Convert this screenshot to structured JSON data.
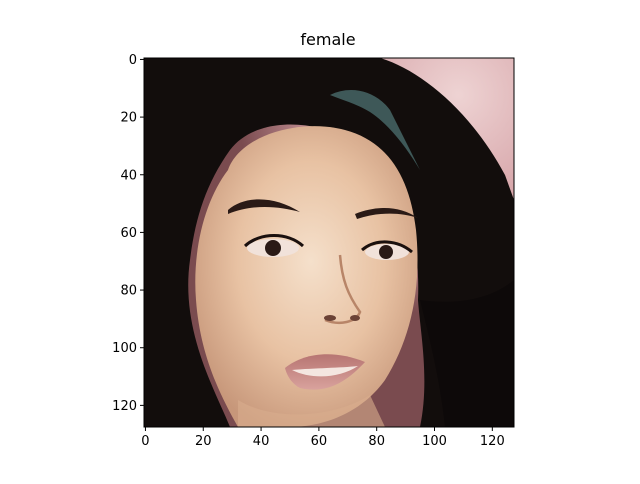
{
  "chart_data": {
    "type": "heatmap",
    "title": "female",
    "xlabel": "",
    "ylabel": "",
    "xlim": [
      0,
      127
    ],
    "ylim": [
      127,
      0
    ],
    "grid": false,
    "x_ticks": [
      0,
      20,
      40,
      60,
      80,
      100,
      120
    ],
    "y_ticks": [
      0,
      20,
      40,
      60,
      80,
      100,
      120
    ],
    "image_content": "face photo (female, long dark wavy hair)",
    "colors": {
      "hair": "#120d0c",
      "skin": "#e9c3a4",
      "skin_light": "#f3dcc6",
      "background_pink": "#d9a3a8",
      "lips": "#c78a86",
      "eyes": "#2a1a16"
    }
  }
}
